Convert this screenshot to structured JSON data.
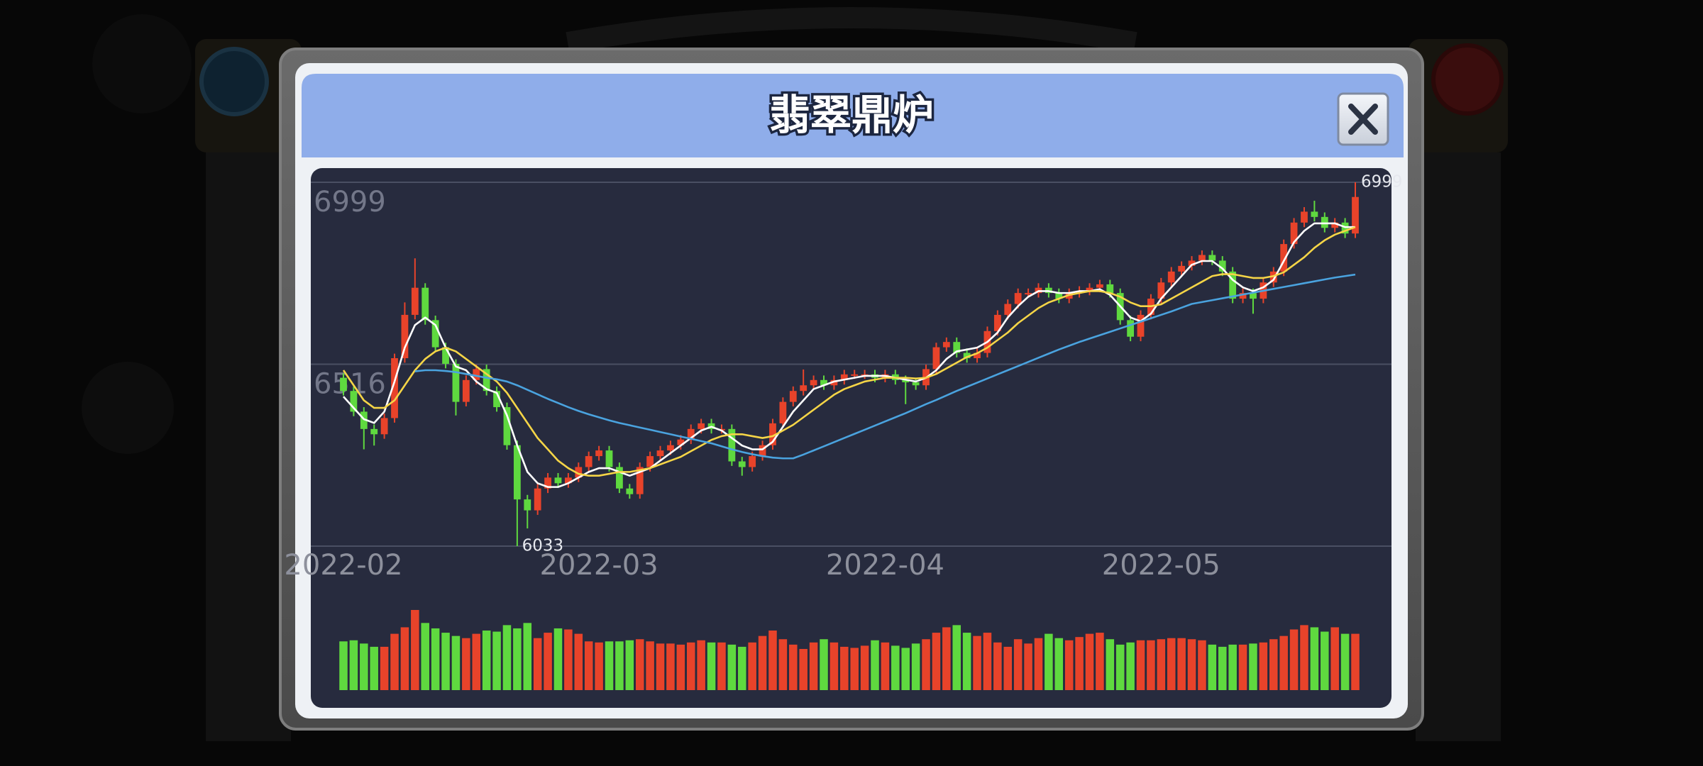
{
  "title": "翡翠鼎炉",
  "chart_data": {
    "type": "candlestick",
    "categories": [
      "2022-02",
      null,
      null,
      null,
      null,
      null,
      null,
      null,
      null,
      null,
      null,
      null,
      null,
      null,
      null,
      null,
      null,
      null,
      null,
      null,
      null,
      null,
      null,
      null,
      null,
      "2022-03",
      null,
      null,
      null,
      null,
      null,
      null,
      null,
      null,
      null,
      null,
      null,
      null,
      null,
      null,
      null,
      null,
      null,
      null,
      null,
      null,
      null,
      null,
      null,
      null,
      null,
      null,
      null,
      "2022-04",
      null,
      null,
      null,
      null,
      null,
      null,
      null,
      null,
      null,
      null,
      null,
      null,
      null,
      null,
      null,
      null,
      null,
      null,
      null,
      null,
      null,
      null,
      null,
      null,
      null,
      null,
      "2022-05",
      null,
      null,
      null,
      null,
      null,
      null,
      null,
      null,
      null,
      null,
      null,
      null,
      null,
      null,
      null,
      null,
      null,
      null,
      null
    ],
    "open": [
      6480,
      6445,
      6390,
      6344,
      6330,
      6373,
      6532,
      6647,
      6719,
      6633,
      6561,
      6517,
      6416,
      6474,
      6503,
      6445,
      6402,
      6301,
      6157,
      6128,
      6186,
      6215,
      6200,
      6215,
      6243,
      6272,
      6287,
      6243,
      6186,
      6171,
      6243,
      6272,
      6287,
      6301,
      6316,
      6344,
      6359,
      6344,
      6344,
      6258,
      6243,
      6272,
      6301,
      6359,
      6416,
      6445,
      6460,
      6474,
      6460,
      6474,
      6489,
      6489,
      6489,
      6480,
      6489,
      6474,
      6468,
      6460,
      6503,
      6561,
      6575,
      6546,
      6532,
      6546,
      6604,
      6647,
      6676,
      6705,
      6705,
      6719,
      6705,
      6690,
      6705,
      6711,
      6719,
      6728,
      6705,
      6633,
      6589,
      6647,
      6690,
      6733,
      6762,
      6777,
      6791,
      6806,
      6791,
      6762,
      6690,
      6705,
      6690,
      6733,
      6762,
      6835,
      6892,
      6921,
      6907,
      6878,
      6892,
      6863
    ],
    "high": [
      6492,
      6457,
      6402,
      6356,
      6385,
      6544,
      6680,
      6797,
      6731,
      6645,
      6573,
      6529,
      6486,
      6515,
      6515,
      6457,
      6414,
      6313,
      6169,
      6198,
      6227,
      6227,
      6227,
      6255,
      6284,
      6299,
      6299,
      6255,
      6198,
      6255,
      6284,
      6299,
      6313,
      6328,
      6356,
      6371,
      6371,
      6356,
      6356,
      6270,
      6284,
      6313,
      6371,
      6428,
      6457,
      6502,
      6486,
      6486,
      6486,
      6501,
      6501,
      6501,
      6501,
      6501,
      6501,
      6486,
      6480,
      6515,
      6573,
      6587,
      6587,
      6558,
      6558,
      6616,
      6659,
      6688,
      6717,
      6717,
      6731,
      6731,
      6717,
      6717,
      6723,
      6731,
      6740,
      6740,
      6717,
      6645,
      6659,
      6702,
      6745,
      6774,
      6789,
      6803,
      6818,
      6818,
      6803,
      6774,
      6717,
      6717,
      6745,
      6774,
      6847,
      6904,
      6933,
      6950,
      6919,
      6904,
      6904,
      6999
    ],
    "low": [
      6433,
      6378,
      6290,
      6300,
      6318,
      6361,
      6520,
      6635,
      6621,
      6549,
      6505,
      6380,
      6404,
      6462,
      6433,
      6390,
      6289,
      6033,
      6080,
      6116,
      6174,
      6188,
      6188,
      6203,
      6231,
      6260,
      6231,
      6174,
      6159,
      6159,
      6231,
      6260,
      6275,
      6289,
      6304,
      6332,
      6332,
      6332,
      6246,
      6220,
      6231,
      6260,
      6289,
      6347,
      6404,
      6433,
      6448,
      6448,
      6448,
      6462,
      6477,
      6477,
      6468,
      6468,
      6462,
      6410,
      6448,
      6448,
      6491,
      6549,
      6534,
      6520,
      6520,
      6534,
      6592,
      6635,
      6664,
      6693,
      6693,
      6693,
      6678,
      6678,
      6693,
      6699,
      6707,
      6693,
      6621,
      6577,
      6577,
      6635,
      6678,
      6721,
      6750,
      6765,
      6779,
      6779,
      6750,
      6678,
      6678,
      6650,
      6678,
      6721,
      6750,
      6823,
      6880,
      6895,
      6866,
      6866,
      6851,
      6851
    ],
    "close": [
      6445,
      6390,
      6344,
      6330,
      6373,
      6532,
      6647,
      6719,
      6633,
      6561,
      6517,
      6416,
      6474,
      6503,
      6445,
      6402,
      6301,
      6157,
      6128,
      6186,
      6215,
      6200,
      6215,
      6243,
      6272,
      6287,
      6243,
      6186,
      6171,
      6243,
      6272,
      6287,
      6301,
      6316,
      6344,
      6359,
      6344,
      6344,
      6258,
      6243,
      6272,
      6301,
      6359,
      6416,
      6445,
      6460,
      6474,
      6460,
      6474,
      6489,
      6489,
      6489,
      6480,
      6489,
      6474,
      6468,
      6460,
      6503,
      6561,
      6575,
      6546,
      6532,
      6546,
      6604,
      6647,
      6676,
      6705,
      6705,
      6719,
      6705,
      6690,
      6705,
      6711,
      6719,
      6728,
      6705,
      6633,
      6589,
      6647,
      6690,
      6733,
      6762,
      6777,
      6791,
      6806,
      6791,
      6762,
      6690,
      6705,
      6690,
      6733,
      6762,
      6835,
      6892,
      6921,
      6907,
      6878,
      6892,
      6863,
      6960
    ],
    "volume": [
      45,
      46,
      43,
      40,
      40,
      52,
      58,
      74,
      62,
      57,
      53,
      50,
      48,
      52,
      55,
      54,
      60,
      57,
      62,
      48,
      53,
      57,
      56,
      52,
      45,
      44,
      45,
      45,
      46,
      47,
      45,
      43,
      43,
      42,
      44,
      46,
      44,
      44,
      42,
      40,
      44,
      50,
      55,
      47,
      42,
      38,
      44,
      47,
      44,
      40,
      39,
      41,
      46,
      44,
      41,
      39,
      43,
      47,
      53,
      58,
      60,
      53,
      50,
      53,
      44,
      40,
      47,
      43,
      48,
      52,
      48,
      46,
      49,
      52,
      53,
      47,
      42,
      44,
      46,
      46,
      47,
      48,
      48,
      47,
      46,
      42,
      40,
      42,
      42,
      43,
      44,
      47,
      50,
      56,
      60,
      58,
      54,
      58,
      52,
      52
    ],
    "up_color": "#e8432a",
    "down_color": "#5fd93f",
    "moving_averages": [
      {
        "color": "#ffffff",
        "values": [
          6430,
          6400,
          6370,
          6360,
          6390,
          6470,
          6560,
          6620,
          6640,
          6620,
          6560,
          6510,
          6500,
          6470,
          6450,
          6440,
          6380,
          6300,
          6230,
          6200,
          6190,
          6190,
          6200,
          6215,
          6230,
          6240,
          6240,
          6230,
          6220,
          6230,
          6240,
          6260,
          6280,
          6300,
          6320,
          6340,
          6350,
          6340,
          6320,
          6300,
          6290,
          6290,
          6310,
          6350,
          6390,
          6420,
          6450,
          6460,
          6470,
          6475,
          6480,
          6485,
          6485,
          6485,
          6480,
          6475,
          6470,
          6480,
          6500,
          6530,
          6550,
          6555,
          6560,
          6575,
          6600,
          6640,
          6670,
          6695,
          6710,
          6710,
          6705,
          6705,
          6710,
          6710,
          6715,
          6700,
          6670,
          6640,
          6630,
          6650,
          6690,
          6720,
          6750,
          6780,
          6790,
          6790,
          6770,
          6740,
          6720,
          6710,
          6720,
          6740,
          6790,
          6840,
          6870,
          6890,
          6890,
          6890,
          6880,
          6880
        ]
      },
      {
        "color": "#f5d547",
        "values": [
          6500,
          6460,
          6420,
          6400,
          6400,
          6420,
          6460,
          6500,
          6530,
          6550,
          6560,
          6550,
          6530,
          6510,
          6490,
          6470,
          6440,
          6400,
          6360,
          6320,
          6290,
          6260,
          6240,
          6225,
          6220,
          6220,
          6225,
          6230,
          6230,
          6235,
          6240,
          6250,
          6260,
          6270,
          6285,
          6300,
          6315,
          6325,
          6330,
          6330,
          6325,
          6320,
          6325,
          6340,
          6355,
          6375,
          6395,
          6415,
          6435,
          6450,
          6460,
          6470,
          6475,
          6480,
          6480,
          6480,
          6478,
          6480,
          6490,
          6505,
          6520,
          6535,
          6545,
          6560,
          6580,
          6600,
          6625,
          6645,
          6665,
          6680,
          6690,
          6700,
          6705,
          6710,
          6710,
          6705,
          6695,
          6680,
          6670,
          6670,
          6675,
          6690,
          6705,
          6720,
          6735,
          6750,
          6755,
          6755,
          6750,
          6745,
          6745,
          6750,
          6760,
          6780,
          6800,
          6825,
          6845,
          6860,
          6870,
          6880
        ]
      },
      {
        "color": "#4aa3df",
        "values": [
          null,
          null,
          null,
          null,
          null,
          null,
          null,
          6497,
          6500,
          6500,
          6498,
          6495,
          6490,
          6485,
          6480,
          6476,
          6470,
          6460,
          6448,
          6436,
          6424,
          6413,
          6402,
          6392,
          6383,
          6375,
          6367,
          6360,
          6354,
          6348,
          6342,
          6336,
          6330,
          6324,
          6318,
          6312,
          6306,
          6298,
          6290,
          6283,
          6277,
          6272,
          6268,
          6266,
          6266,
          6276,
          6287,
          6298,
          6309,
          6320,
          6331,
          6342,
          6353,
          6364,
          6375,
          6386,
          6398,
          6410,
          6421,
          6433,
          6445,
          6456,
          6467,
          6478,
          6489,
          6500,
          6511,
          6522,
          6533,
          6544,
          6555,
          6565,
          6575,
          6584,
          6593,
          6602,
          6611,
          6620,
          6629,
          6638,
          6647,
          6656,
          6666,
          6676,
          6681,
          6686,
          6691,
          6696,
          6701,
          6706,
          6711,
          6716,
          6721,
          6726,
          6731,
          6736,
          6741,
          6746,
          6750,
          6754
        ]
      }
    ],
    "ylim": [
      6033,
      6999
    ],
    "yticks": [
      6516,
      6999
    ],
    "grid": true
  }
}
